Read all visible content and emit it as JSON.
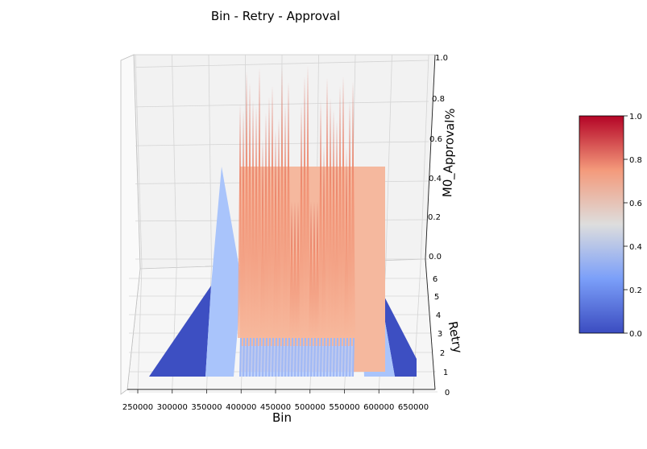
{
  "chart_data": {
    "type": "surface",
    "title": "Bin - Retry - Approval",
    "xlabel": "Bin",
    "ylabel": "Retry",
    "zlabel": "M0_Approval%",
    "x_ticks": [
      "250000",
      "300000",
      "350000",
      "400000",
      "450000",
      "500000",
      "550000",
      "600000",
      "650000"
    ],
    "y_ticks": [
      "0",
      "1",
      "2",
      "3",
      "4",
      "5",
      "6"
    ],
    "z_ticks": [
      "0.0",
      "0.2",
      "0.4",
      "0.6",
      "0.8",
      "1.0"
    ],
    "xlim": [
      240000,
      680000
    ],
    "ylim": [
      0,
      6.5
    ],
    "zlim": [
      0,
      1
    ],
    "colormap": "coolwarm",
    "colorbar_ticks": [
      "0.0",
      "0.2",
      "0.4",
      "0.6",
      "0.8",
      "1.0"
    ],
    "colorbar_range": [
      0,
      1
    ],
    "grid": true,
    "surface_points": [
      {
        "bin": 265000,
        "retry": 0.3,
        "approval": 0.0
      },
      {
        "bin": 350000,
        "retry": 0.3,
        "approval": 0.0
      },
      {
        "bin": 365000,
        "retry": 1.0,
        "approval": 0.45
      },
      {
        "bin": 385000,
        "retry": 1.0,
        "approval": 0.45
      },
      {
        "bin": 400000,
        "retry": 1.0,
        "approval": 0.7
      },
      {
        "bin": 420000,
        "retry": 1.0,
        "approval": 0.9
      },
      {
        "bin": 440000,
        "retry": 1.0,
        "approval": 0.85
      },
      {
        "bin": 460000,
        "retry": 1.0,
        "approval": 0.6
      },
      {
        "bin": 480000,
        "retry": 1.0,
        "approval": 0.95
      },
      {
        "bin": 500000,
        "retry": 1.0,
        "approval": 0.9
      },
      {
        "bin": 520000,
        "retry": 1.0,
        "approval": 0.8
      },
      {
        "bin": 540000,
        "retry": 1.0,
        "approval": 0.7
      },
      {
        "bin": 560000,
        "retry": 1.0,
        "approval": 0.6
      },
      {
        "bin": 580000,
        "retry": 1.0,
        "approval": 0.45
      },
      {
        "bin": 600000,
        "retry": 1.0,
        "approval": 0.45
      },
      {
        "bin": 650000,
        "retry": 0.3,
        "approval": 0.0
      }
    ]
  }
}
